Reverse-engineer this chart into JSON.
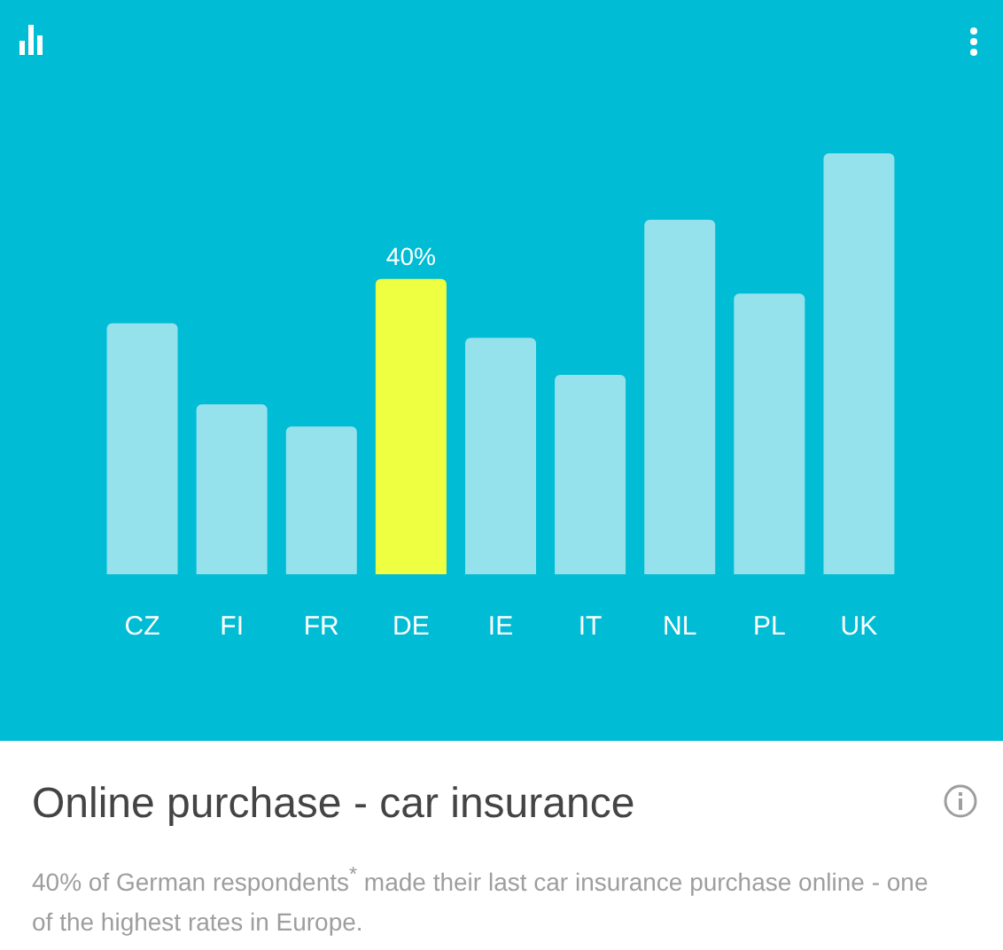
{
  "chart_data": {
    "type": "bar",
    "title": "Online purchase - car insurance",
    "subtitle": "40% of German respondents$^{*}$ made their last car insurance purchase online - one of the highest rates in Europe.",
    "categories": [
      "CZ",
      "FI",
      "FR",
      "DE",
      "IE",
      "IT",
      "NL",
      "PL",
      "UK"
    ],
    "values": [
      34,
      23,
      20,
      40,
      32,
      27,
      48,
      38,
      57
    ],
    "colors": [
      "#95e1ec",
      "#95e1ec",
      "#95e1ec",
      "#eeff41",
      "#95e1ec",
      "#95e1ec",
      "#95e1ec",
      "#95e1ec",
      "#95e1ec"
    ],
    "value_labels": [
      null,
      null,
      null,
      "40%",
      null,
      null,
      null,
      null,
      null
    ],
    "data_labels": false
  }
}
